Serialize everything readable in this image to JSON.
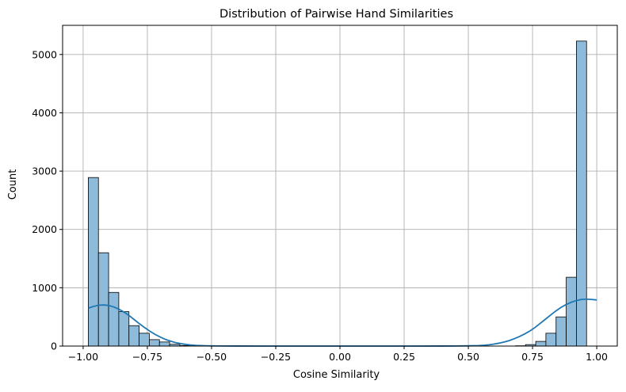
{
  "colors": {
    "bar_fill": "#8fbbda",
    "bar_edge": "#000000",
    "kde_line": "#1f77b4",
    "grid": "#b0b0b0",
    "axes": "#000000"
  },
  "chart_data": {
    "type": "bar",
    "title": "Distribution of Pairwise Hand Similarities",
    "xlabel": "Cosine Similarity",
    "ylabel": "Count",
    "xlim": [
      -1.08,
      1.08
    ],
    "ylim": [
      0,
      5500
    ],
    "grid": true,
    "xticks": [
      -1.0,
      -0.75,
      -0.5,
      -0.25,
      0.0,
      0.25,
      0.5,
      0.75,
      1.0
    ],
    "xtick_labels": [
      "−1.00",
      "−0.75",
      "−0.50",
      "−0.25",
      "0.00",
      "0.25",
      "0.50",
      "0.75",
      "1.00"
    ],
    "yticks": [
      0,
      1000,
      2000,
      3000,
      4000,
      5000
    ],
    "ytick_labels": [
      "0",
      "1000",
      "2000",
      "3000",
      "4000",
      "5000"
    ],
    "bins": {
      "start": -0.98,
      "end": 1.0,
      "width": 0.0396,
      "counts": [
        2890,
        1600,
        920,
        590,
        350,
        220,
        110,
        70,
        30,
        10,
        5,
        0,
        0,
        0,
        0,
        0,
        0,
        0,
        0,
        0,
        0,
        0,
        0,
        0,
        0,
        0,
        0,
        0,
        0,
        0,
        0,
        0,
        0,
        0,
        0,
        0,
        0,
        0,
        0,
        0,
        0,
        0,
        5,
        25,
        80,
        220,
        500,
        1180,
        5230
      ]
    },
    "kde": {
      "x": [
        -0.98,
        -0.96,
        -0.94,
        -0.92,
        -0.9,
        -0.88,
        -0.86,
        -0.84,
        -0.82,
        -0.8,
        -0.78,
        -0.76,
        -0.74,
        -0.72,
        -0.7,
        -0.68,
        -0.66,
        -0.64,
        -0.62,
        -0.6,
        -0.58,
        -0.56,
        -0.54,
        -0.52,
        -0.5,
        -0.45,
        -0.4,
        -0.3,
        -0.2,
        0.0,
        0.2,
        0.3,
        0.4,
        0.45,
        0.5,
        0.52,
        0.54,
        0.56,
        0.58,
        0.6,
        0.62,
        0.64,
        0.66,
        0.68,
        0.7,
        0.72,
        0.74,
        0.76,
        0.78,
        0.8,
        0.82,
        0.84,
        0.86,
        0.88,
        0.9,
        0.92,
        0.94,
        0.96,
        0.98,
        1.0
      ],
      "y": [
        650,
        680,
        700,
        705,
        695,
        670,
        630,
        580,
        520,
        450,
        380,
        315,
        255,
        200,
        155,
        115,
        85,
        60,
        42,
        28,
        18,
        12,
        8,
        5,
        3,
        2,
        1,
        0,
        0,
        0,
        0,
        0,
        1,
        2,
        4,
        6,
        9,
        14,
        22,
        34,
        50,
        70,
        95,
        128,
        165,
        210,
        260,
        320,
        390,
        460,
        530,
        600,
        660,
        710,
        750,
        780,
        800,
        805,
        800,
        790
      ]
    }
  }
}
